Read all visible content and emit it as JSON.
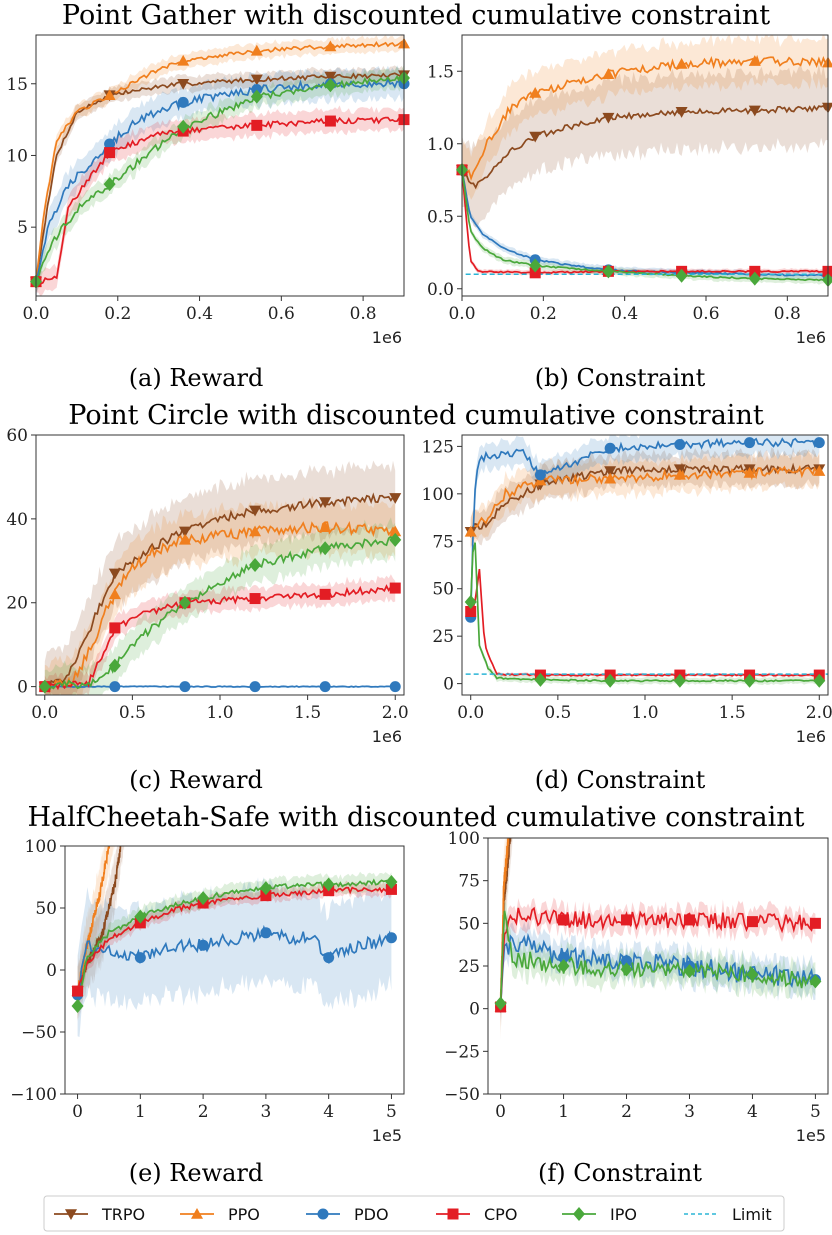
{
  "figure": {
    "row_titles": [
      "Point Gather with discounted cumulative constraint",
      "Point Circle with discounted cumulative constraint",
      "HalfCheetah-Safe with discounted cumulative constraint"
    ]
  },
  "legend": {
    "items": [
      {
        "name": "TRPO",
        "color": "#8c4a1f",
        "marker": "triangle-down"
      },
      {
        "name": "PPO",
        "color": "#f07f1e",
        "marker": "triangle-up"
      },
      {
        "name": "PDO",
        "color": "#2f79bd",
        "marker": "circle"
      },
      {
        "name": "CPO",
        "color": "#e31d24",
        "marker": "square"
      },
      {
        "name": "IPO",
        "color": "#4aa83b",
        "marker": "diamond"
      },
      {
        "name": "Limit",
        "color": "#2bb5d6",
        "marker": "dashed"
      }
    ]
  },
  "chart_data": [
    {
      "id": "a",
      "type": "line",
      "caption": "(a) Reward",
      "multiplier": "1e6",
      "xlim": [
        0,
        0.9
      ],
      "ylim": [
        0.2,
        18.4
      ],
      "xticks": [
        0.0,
        0.2,
        0.4,
        0.6,
        0.8
      ],
      "xtick_labels": [
        "0.0",
        "0.2",
        "0.4",
        "0.6",
        "0.8"
      ],
      "yticks": [
        5,
        10,
        15
      ],
      "ytick_labels": [
        "5",
        "10",
        "15"
      ],
      "series": [
        {
          "name": "TRPO",
          "band": 0.6,
          "noise": 0.15,
          "x": [
            0,
            0.02,
            0.05,
            0.1,
            0.18,
            0.3,
            0.36,
            0.54,
            0.72,
            0.9
          ],
          "y": [
            1.2,
            5,
            10,
            13,
            14.2,
            14.8,
            15.0,
            15.3,
            15.5,
            15.6
          ]
        },
        {
          "name": "PPO",
          "band": 0.6,
          "noise": 0.15,
          "x": [
            0,
            0.02,
            0.05,
            0.1,
            0.18,
            0.3,
            0.36,
            0.54,
            0.72,
            0.9
          ],
          "y": [
            1.2,
            6,
            11,
            13,
            14.2,
            16.0,
            16.6,
            17.3,
            17.6,
            17.8
          ]
        },
        {
          "name": "PDO",
          "band": 1.2,
          "noise": 0.3,
          "x": [
            0,
            0.03,
            0.08,
            0.18,
            0.25,
            0.36,
            0.45,
            0.54,
            0.72,
            0.9
          ],
          "y": [
            1.2,
            5,
            8,
            10.8,
            12.5,
            13.7,
            14.2,
            14.6,
            15.0,
            15.0
          ]
        },
        {
          "name": "CPO",
          "band": 0.9,
          "noise": 0.2,
          "x": [
            0,
            0.03,
            0.05,
            0.08,
            0.18,
            0.3,
            0.36,
            0.54,
            0.72,
            0.9
          ],
          "y": [
            1.2,
            1.3,
            1.5,
            6.5,
            10.2,
            11.5,
            11.7,
            12.1,
            12.4,
            12.5
          ]
        },
        {
          "name": "IPO",
          "band": 0.8,
          "noise": 0.25,
          "x": [
            0,
            0.04,
            0.1,
            0.18,
            0.27,
            0.36,
            0.45,
            0.54,
            0.72,
            0.9
          ],
          "y": [
            1.2,
            4.0,
            6.2,
            8.0,
            10.0,
            12.0,
            13.0,
            14.1,
            14.9,
            15.4
          ]
        }
      ],
      "markers_x": [
        0,
        0.18,
        0.36,
        0.54,
        0.72,
        0.9
      ]
    },
    {
      "id": "b",
      "type": "line",
      "caption": "(b) Constraint",
      "multiplier": "1e6",
      "xlim": [
        0,
        0.9
      ],
      "ylim": [
        -0.05,
        1.75
      ],
      "xticks": [
        0.0,
        0.2,
        0.4,
        0.6,
        0.8
      ],
      "xtick_labels": [
        "0.0",
        "0.2",
        "0.4",
        "0.6",
        "0.8"
      ],
      "yticks": [
        0.0,
        0.5,
        1.0,
        1.5
      ],
      "ytick_labels": [
        "0.0",
        "0.5",
        "1.0",
        "1.5"
      ],
      "limit": 0.1,
      "series": [
        {
          "name": "TRPO",
          "band": 0.3,
          "noise": 0.02,
          "x": [
            0,
            0.03,
            0.06,
            0.12,
            0.18,
            0.27,
            0.36,
            0.54,
            0.72,
            0.9
          ],
          "y": [
            0.82,
            0.7,
            0.78,
            0.95,
            1.05,
            1.12,
            1.18,
            1.22,
            1.23,
            1.25
          ]
        },
        {
          "name": "PPO",
          "band": 0.18,
          "noise": 0.03,
          "x": [
            0,
            0.03,
            0.06,
            0.12,
            0.18,
            0.27,
            0.36,
            0.54,
            0.72,
            0.9
          ],
          "y": [
            0.82,
            0.78,
            1.0,
            1.25,
            1.35,
            1.42,
            1.48,
            1.55,
            1.57,
            1.56
          ]
        },
        {
          "name": "PDO",
          "band": 0.03,
          "noise": 0.005,
          "x": [
            0,
            0.02,
            0.05,
            0.1,
            0.18,
            0.27,
            0.36,
            0.54,
            0.72,
            0.9
          ],
          "y": [
            0.82,
            0.5,
            0.38,
            0.28,
            0.2,
            0.16,
            0.13,
            0.11,
            0.1,
            0.09
          ]
        },
        {
          "name": "CPO",
          "band": 0.02,
          "noise": 0.005,
          "x": [
            0,
            0.01,
            0.02,
            0.04,
            0.18,
            0.36,
            0.54,
            0.72,
            0.9
          ],
          "y": [
            0.82,
            0.5,
            0.2,
            0.12,
            0.11,
            0.12,
            0.12,
            0.12,
            0.12
          ]
        },
        {
          "name": "IPO",
          "band": 0.03,
          "noise": 0.005,
          "x": [
            0,
            0.02,
            0.05,
            0.1,
            0.18,
            0.27,
            0.36,
            0.54,
            0.72,
            0.9
          ],
          "y": [
            0.82,
            0.4,
            0.28,
            0.2,
            0.16,
            0.14,
            0.12,
            0.09,
            0.07,
            0.06
          ]
        }
      ],
      "markers_x": [
        0,
        0.18,
        0.36,
        0.54,
        0.72,
        0.9
      ]
    },
    {
      "id": "c",
      "type": "line",
      "caption": "(c) Reward",
      "multiplier": "1e6",
      "xlim": [
        -0.05,
        2.05
      ],
      "ylim": [
        -2,
        60
      ],
      "xticks": [
        0.0,
        0.5,
        1.0,
        1.5,
        2.0
      ],
      "xtick_labels": [
        "0.0",
        "0.5",
        "1.0",
        "1.5",
        "2.0"
      ],
      "yticks": [
        0,
        20,
        40,
        60
      ],
      "ytick_labels": [
        "0",
        "20",
        "40",
        "60"
      ],
      "series": [
        {
          "name": "TRPO",
          "band": 9,
          "noise": 1.0,
          "x": [
            0,
            0.1,
            0.2,
            0.3,
            0.4,
            0.6,
            0.8,
            1.0,
            1.2,
            1.6,
            2.0
          ],
          "y": [
            0,
            1,
            8,
            18,
            27,
            33,
            37,
            40,
            42,
            44,
            45
          ]
        },
        {
          "name": "PPO",
          "band": 7,
          "noise": 1.3,
          "x": [
            0,
            0.15,
            0.25,
            0.35,
            0.45,
            0.6,
            0.8,
            1.0,
            1.2,
            1.6,
            2.0
          ],
          "y": [
            0,
            1,
            8,
            18,
            26,
            32,
            35,
            36,
            37,
            38,
            37
          ]
        },
        {
          "name": "PDO",
          "band": 0.3,
          "noise": 0.1,
          "x": [
            0,
            0.4,
            0.8,
            1.2,
            1.6,
            2.0
          ],
          "y": [
            0,
            0,
            0,
            0,
            0,
            0
          ]
        },
        {
          "name": "CPO",
          "band": 3,
          "noise": 0.8,
          "x": [
            0,
            0.25,
            0.32,
            0.4,
            0.55,
            0.8,
            1.2,
            1.6,
            2.0
          ],
          "y": [
            0,
            1,
            7,
            14,
            17,
            20,
            21,
            22,
            23.5
          ]
        },
        {
          "name": "IPO",
          "band": 5,
          "noise": 1.0,
          "x": [
            0,
            0.3,
            0.4,
            0.55,
            0.8,
            1.0,
            1.2,
            1.4,
            1.6,
            2.0
          ],
          "y": [
            0,
            1,
            5,
            12,
            20,
            25,
            29,
            31,
            33,
            35
          ]
        }
      ],
      "markers_x": [
        0,
        0.4,
        0.8,
        1.2,
        1.6,
        2.0
      ]
    },
    {
      "id": "d",
      "type": "line",
      "caption": "(d) Constraint",
      "multiplier": "1e6",
      "xlim": [
        -0.05,
        2.05
      ],
      "ylim": [
        -6,
        131
      ],
      "xticks": [
        0.0,
        0.5,
        1.0,
        1.5,
        2.0
      ],
      "xtick_labels": [
        "0.0",
        "0.5",
        "1.0",
        "1.5",
        "2.0"
      ],
      "yticks": [
        0,
        25,
        50,
        75,
        100,
        125
      ],
      "ytick_labels": [
        "0",
        "25",
        "50",
        "75",
        "100",
        "125"
      ],
      "limit": 5,
      "series": [
        {
          "name": "TRPO",
          "band": 10,
          "noise": 2.0,
          "x": [
            0,
            0.02,
            0.1,
            0.2,
            0.4,
            0.8,
            1.2,
            1.6,
            2.0
          ],
          "y": [
            80,
            82,
            85,
            95,
            105,
            112,
            113,
            113,
            113
          ]
        },
        {
          "name": "PPO",
          "band": 10,
          "noise": 2.5,
          "x": [
            0,
            0.02,
            0.1,
            0.2,
            0.4,
            0.8,
            1.2,
            1.6,
            2.0
          ],
          "y": [
            80,
            82,
            88,
            100,
            107,
            108,
            110,
            111,
            112
          ]
        },
        {
          "name": "PDO",
          "band": 8,
          "noise": 2.0,
          "x": [
            0,
            0.02,
            0.05,
            0.1,
            0.3,
            0.4,
            0.8,
            1.2,
            1.6,
            2.0
          ],
          "y": [
            35,
            100,
            118,
            120,
            122,
            110,
            124,
            126,
            127,
            127
          ]
        },
        {
          "name": "CPO",
          "band": 1,
          "noise": 0.4,
          "x": [
            0,
            0.02,
            0.05,
            0.08,
            0.15,
            0.4,
            0.8,
            1.2,
            1.6,
            2.0
          ],
          "y": [
            38,
            40,
            60,
            20,
            5,
            4.5,
            4.5,
            4.5,
            4.5,
            4.5
          ]
        },
        {
          "name": "IPO",
          "band": 2,
          "noise": 0.4,
          "x": [
            0,
            0.02,
            0.05,
            0.1,
            0.15,
            0.4,
            0.8,
            1.2,
            1.6,
            2.0
          ],
          "y": [
            43,
            85,
            20,
            8,
            3,
            2,
            1.5,
            1.5,
            1.5,
            1.5
          ]
        }
      ],
      "markers_x": [
        0,
        0.4,
        0.8,
        1.2,
        1.6,
        2.0
      ]
    },
    {
      "id": "e",
      "type": "line",
      "caption": "(e) Reward",
      "multiplier": "1e5",
      "xlim": [
        -0.2,
        5.2
      ],
      "ylim": [
        -100,
        100
      ],
      "xticks": [
        0,
        1,
        2,
        3,
        4,
        5
      ],
      "xtick_labels": [
        "0",
        "1",
        "2",
        "3",
        "4",
        "5"
      ],
      "yticks": [
        -100,
        -50,
        0,
        50,
        100
      ],
      "ytick_labels": [
        "−100",
        "−50",
        "0",
        "50",
        "100"
      ],
      "series": [
        {
          "name": "TRPO",
          "band": 25,
          "noise": 4,
          "x": [
            0,
            0.15,
            0.4,
            0.6,
            0.8
          ],
          "y": [
            -17,
            5,
            30,
            70,
            140
          ]
        },
        {
          "name": "PPO",
          "band": 25,
          "noise": 4,
          "x": [
            0,
            0.15,
            0.35,
            0.5,
            0.7
          ],
          "y": [
            -17,
            20,
            60,
            100,
            150
          ]
        },
        {
          "name": "PDO",
          "band": 45,
          "noise": 5,
          "x": [
            0,
            0.15,
            0.5,
            1.0,
            1.5,
            2.0,
            2.5,
            3.0,
            3.5,
            3.8,
            3.9,
            4.5,
            5.0
          ],
          "y": [
            -20,
            20,
            15,
            10,
            20,
            20,
            25,
            30,
            25,
            30,
            8,
            20,
            26
          ]
        },
        {
          "name": "CPO",
          "band": 6,
          "noise": 2,
          "x": [
            0,
            0.15,
            0.5,
            1.0,
            1.5,
            2.0,
            2.5,
            3.0,
            3.5,
            4.0,
            4.5,
            5.0
          ],
          "y": [
            -17,
            5,
            25,
            38,
            48,
            54,
            58,
            60,
            62,
            64,
            65,
            65
          ]
        },
        {
          "name": "IPO",
          "band": 8,
          "noise": 2,
          "x": [
            0,
            0.15,
            0.5,
            1.0,
            1.5,
            2.0,
            2.5,
            3.0,
            3.5,
            4.0,
            4.5,
            5.0
          ],
          "y": [
            -29,
            10,
            30,
            43,
            52,
            58,
            63,
            66,
            68,
            69,
            70,
            71
          ]
        }
      ],
      "markers_x": [
        0,
        1,
        2,
        3,
        4,
        5
      ]
    },
    {
      "id": "f",
      "type": "line",
      "caption": "(f) Constraint",
      "multiplier": "1e5",
      "xlim": [
        -0.2,
        5.2
      ],
      "ylim": [
        -50,
        100
      ],
      "xticks": [
        0,
        1,
        2,
        3,
        4,
        5
      ],
      "xtick_labels": [
        "0",
        "1",
        "2",
        "3",
        "4",
        "5"
      ],
      "yticks": [
        -50,
        -25,
        0,
        25,
        50,
        75,
        100
      ],
      "ytick_labels": [
        "−50",
        "−25",
        "0",
        "25",
        "50",
        "75",
        "100"
      ],
      "series": [
        {
          "name": "TRPO",
          "band": 20,
          "noise": 5,
          "x": [
            0,
            0.05,
            0.15,
            0.25
          ],
          "y": [
            1,
            60,
            100,
            140
          ]
        },
        {
          "name": "PPO",
          "band": 20,
          "noise": 5,
          "x": [
            0,
            0.05,
            0.15,
            0.25
          ],
          "y": [
            1,
            70,
            110,
            150
          ]
        },
        {
          "name": "PDO",
          "band": 10,
          "noise": 6,
          "x": [
            0,
            0.05,
            0.2,
            1.0,
            2.0,
            3.0,
            4.0,
            5.0
          ],
          "y": [
            1,
            35,
            40,
            30,
            28,
            25,
            20,
            17
          ]
        },
        {
          "name": "CPO",
          "band": 8,
          "noise": 5,
          "x": [
            0,
            0.05,
            0.2,
            1.0,
            2.0,
            3.0,
            4.0,
            5.0
          ],
          "y": [
            1,
            45,
            55,
            52,
            52,
            52,
            51,
            50
          ]
        },
        {
          "name": "IPO",
          "band": 10,
          "noise": 5,
          "x": [
            0,
            0.05,
            0.2,
            1.0,
            2.0,
            3.0,
            4.0,
            5.0
          ],
          "y": [
            3,
            55,
            30,
            25,
            23,
            22,
            20,
            16
          ]
        }
      ],
      "markers_x": [
        0,
        1,
        2,
        3,
        4,
        5
      ]
    }
  ]
}
